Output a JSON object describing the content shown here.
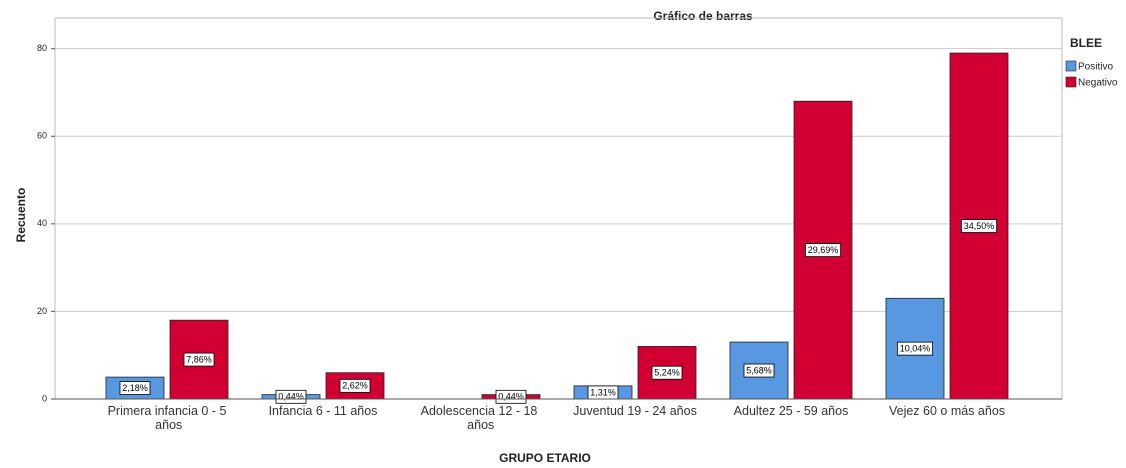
{
  "chart_data": {
    "type": "bar",
    "title": "Gráfico de barras",
    "x_label": "GRUPO ETARIO",
    "y_label": "Recuento",
    "legend_title": "BLEE",
    "legend": "top-right",
    "grid": true,
    "categories": [
      "Primera infancia 0 - 5 años",
      "Infancia 6 - 11 años",
      "Adolescencia 12 - 18 años",
      "Juventud 19 - 24 años",
      "Adultez 25 - 59 años",
      "Vejez 60 o más años"
    ],
    "series": [
      {
        "name": "Positivo",
        "color": "#5898e0",
        "values": [
          5,
          1,
          0,
          3,
          13,
          23
        ],
        "value_labels": [
          "2,18%",
          "0,44%",
          null,
          "1,31%",
          "5,68%",
          "10,04%"
        ]
      },
      {
        "name": "Negativo",
        "color": "#d20032",
        "values": [
          18,
          6,
          1,
          12,
          68,
          79
        ],
        "value_labels": [
          "7,86%",
          "2,62%",
          "0,44%",
          "5,24%",
          "29,69%",
          "34,50%"
        ]
      }
    ],
    "ylim": [
      0,
      87
    ],
    "yticks": [
      0,
      20,
      40,
      60,
      80
    ]
  }
}
